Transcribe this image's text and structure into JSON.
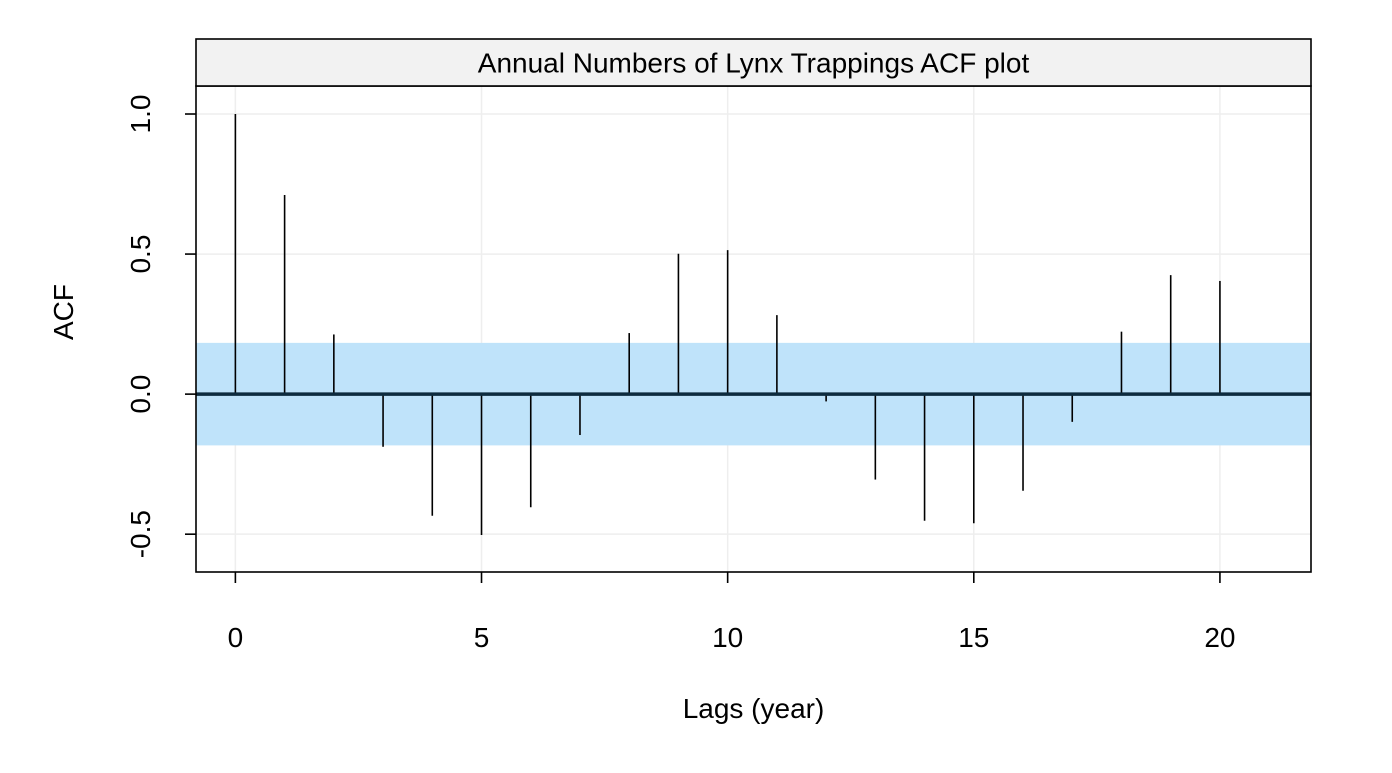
{
  "chart_data": {
    "type": "bar",
    "subtype": "acf",
    "title": "Annual Numbers of Lynx Trappings ACF plot",
    "xlabel": "Lags (year)",
    "ylabel": "ACF",
    "x": [
      0,
      1,
      2,
      3,
      4,
      5,
      6,
      7,
      8,
      9,
      10,
      11,
      12,
      13,
      14,
      15,
      16,
      17,
      18,
      19,
      20
    ],
    "values": [
      1.0,
      0.711,
      0.213,
      -0.188,
      -0.434,
      -0.503,
      -0.404,
      -0.146,
      0.218,
      0.501,
      0.514,
      0.282,
      -0.026,
      -0.305,
      -0.452,
      -0.461,
      -0.345,
      -0.099,
      0.223,
      0.425,
      0.404
    ],
    "confidence_band": [
      -0.183,
      0.183
    ],
    "xlim": [
      -0.8,
      21.85
    ],
    "ylim": [
      -0.635,
      1.1
    ],
    "xticks": [
      0,
      5,
      10,
      15,
      20
    ],
    "xtick_labels": [
      "0",
      "5",
      "10",
      "15",
      "20"
    ],
    "yticks": [
      -0.5,
      0.0,
      0.5,
      1.0
    ],
    "ytick_labels": [
      "-0.5",
      "0.0",
      "0.5",
      "1.0"
    ],
    "grid": true,
    "colors": {
      "band": "#bfe3fa",
      "zero_line": "#0d2b3e",
      "spike": "#000000",
      "grid": "#eeeeee",
      "strip": "#f2f2f2"
    }
  }
}
